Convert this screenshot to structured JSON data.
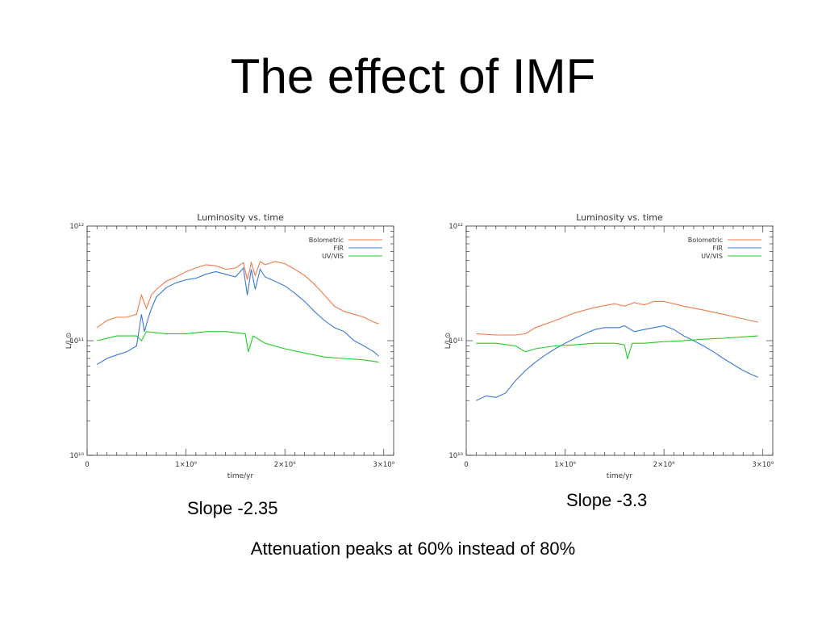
{
  "slide": {
    "title": "The effect of IMF",
    "caption_left": "Slope -2.35",
    "caption_right": "Slope -3.3",
    "footnote": "Attenuation peaks at 60% instead of 80%"
  },
  "colors": {
    "bolometric": "#f07a4a",
    "fir": "#3a78d8",
    "uvvis": "#22cc22"
  },
  "chart_data": [
    {
      "type": "line",
      "title": "Luminosity vs. time",
      "xlabel": "time/yr",
      "ylabel": "L/L⊙",
      "xlim": [
        0,
        3100000000.0
      ],
      "ylim": [
        10000000000.0,
        1000000000000.0
      ],
      "yscale": "log",
      "xticks": [
        0,
        1000000000.0,
        2000000000.0,
        3000000000.0
      ],
      "xtick_labels": [
        "0",
        "1×10⁹",
        "2×10⁹",
        "3×10⁹"
      ],
      "yticks": [
        10000000000.0,
        100000000000.0,
        1000000000000.0
      ],
      "ytick_labels": [
        "10¹⁰",
        "10¹¹",
        "10¹²"
      ],
      "legend_position": "top-right",
      "series": [
        {
          "name": "Bolometric",
          "color": "#f07a4a",
          "x": [
            100000000.0,
            200000000.0,
            300000000.0,
            400000000.0,
            500000000.0,
            550000000.0,
            600000000.0,
            650000000.0,
            700000000.0,
            800000000.0,
            900000000.0,
            1000000000.0,
            1100000000.0,
            1200000000.0,
            1300000000.0,
            1400000000.0,
            1500000000.0,
            1580000000.0,
            1620000000.0,
            1660000000.0,
            1700000000.0,
            1750000000.0,
            1800000000.0,
            1900000000.0,
            2000000000.0,
            2100000000.0,
            2200000000.0,
            2300000000.0,
            2400000000.0,
            2500000000.0,
            2600000000.0,
            2700000000.0,
            2800000000.0,
            2900000000.0,
            2950000000.0
          ],
          "y": [
            130000000000.0,
            150000000000.0,
            160000000000.0,
            160000000000.0,
            170000000000.0,
            250000000000.0,
            190000000000.0,
            250000000000.0,
            280000000000.0,
            330000000000.0,
            360000000000.0,
            400000000000.0,
            430000000000.0,
            460000000000.0,
            450000000000.0,
            420000000000.0,
            430000000000.0,
            480000000000.0,
            340000000000.0,
            480000000000.0,
            370000000000.0,
            490000000000.0,
            460000000000.0,
            490000000000.0,
            470000000000.0,
            420000000000.0,
            370000000000.0,
            310000000000.0,
            250000000000.0,
            200000000000.0,
            180000000000.0,
            170000000000.0,
            160000000000.0,
            145000000000.0,
            140000000000.0
          ]
        },
        {
          "name": "FIR",
          "color": "#3a78d8",
          "x": [
            100000000.0,
            200000000.0,
            300000000.0,
            400000000.0,
            500000000.0,
            550000000.0,
            580000000.0,
            620000000.0,
            650000000.0,
            700000000.0,
            800000000.0,
            900000000.0,
            1000000000.0,
            1100000000.0,
            1200000000.0,
            1300000000.0,
            1400000000.0,
            1500000000.0,
            1580000000.0,
            1620000000.0,
            1660000000.0,
            1700000000.0,
            1750000000.0,
            1800000000.0,
            1900000000.0,
            2000000000.0,
            2100000000.0,
            2200000000.0,
            2300000000.0,
            2400000000.0,
            2500000000.0,
            2600000000.0,
            2700000000.0,
            2800000000.0,
            2900000000.0,
            2950000000.0
          ],
          "y": [
            62000000000.0,
            70000000000.0,
            75000000000.0,
            80000000000.0,
            90000000000.0,
            170000000000.0,
            120000000000.0,
            160000000000.0,
            190000000000.0,
            240000000000.0,
            290000000000.0,
            320000000000.0,
            340000000000.0,
            350000000000.0,
            380000000000.0,
            400000000000.0,
            380000000000.0,
            360000000000.0,
            430000000000.0,
            250000000000.0,
            420000000000.0,
            280000000000.0,
            420000000000.0,
            360000000000.0,
            330000000000.0,
            300000000000.0,
            260000000000.0,
            220000000000.0,
            180000000000.0,
            150000000000.0,
            130000000000.0,
            120000000000.0,
            100000000000.0,
            90000000000.0,
            80000000000.0,
            73000000000.0
          ]
        },
        {
          "name": "UV/VIS",
          "color": "#22cc22",
          "x": [
            100000000.0,
            300000000.0,
            500000000.0,
            550000000.0,
            600000000.0,
            800000000.0,
            1000000000.0,
            1200000000.0,
            1400000000.0,
            1600000000.0,
            1630000000.0,
            1680000000.0,
            1800000000.0,
            2000000000.0,
            2200000000.0,
            2400000000.0,
            2600000000.0,
            2800000000.0,
            2950000000.0
          ],
          "y": [
            100000000000.0,
            110000000000.0,
            110000000000.0,
            100000000000.0,
            120000000000.0,
            115000000000.0,
            115000000000.0,
            120000000000.0,
            120000000000.0,
            115000000000.0,
            80000000000.0,
            110000000000.0,
            95000000000.0,
            85000000000.0,
            78000000000.0,
            72000000000.0,
            70000000000.0,
            68000000000.0,
            65000000000.0
          ]
        }
      ]
    },
    {
      "type": "line",
      "title": "Luminosity vs. time",
      "xlabel": "time/yr",
      "ylabel": "L/L⊙",
      "xlim": [
        0,
        3100000000.0
      ],
      "ylim": [
        10000000000.0,
        1000000000000.0
      ],
      "yscale": "log",
      "xticks": [
        0,
        1000000000.0,
        2000000000.0,
        3000000000.0
      ],
      "xtick_labels": [
        "0",
        "1×10⁹",
        "2×10⁹",
        "3×10⁹"
      ],
      "yticks": [
        10000000000.0,
        100000000000.0,
        1000000000000.0
      ],
      "ytick_labels": [
        "10¹⁰",
        "10¹¹",
        "10¹²"
      ],
      "legend_position": "top-right",
      "series": [
        {
          "name": "Bolometric",
          "color": "#f07a4a",
          "x": [
            100000000.0,
            300000000.0,
            500000000.0,
            600000000.0,
            700000000.0,
            900000000.0,
            1100000000.0,
            1300000000.0,
            1500000000.0,
            1600000000.0,
            1700000000.0,
            1800000000.0,
            1900000000.0,
            2000000000.0,
            2200000000.0,
            2400000000.0,
            2600000000.0,
            2800000000.0,
            2950000000.0
          ],
          "y": [
            115000000000.0,
            112000000000.0,
            112000000000.0,
            115000000000.0,
            130000000000.0,
            150000000000.0,
            175000000000.0,
            195000000000.0,
            210000000000.0,
            200000000000.0,
            215000000000.0,
            205000000000.0,
            220000000000.0,
            220000000000.0,
            200000000000.0,
            185000000000.0,
            170000000000.0,
            155000000000.0,
            145000000000.0
          ]
        },
        {
          "name": "FIR",
          "color": "#3a78d8",
          "x": [
            100000000.0,
            200000000.0,
            300000000.0,
            400000000.0,
            500000000.0,
            600000000.0,
            700000000.0,
            800000000.0,
            900000000.0,
            1000000000.0,
            1100000000.0,
            1200000000.0,
            1300000000.0,
            1400000000.0,
            1500000000.0,
            1550000000.0,
            1600000000.0,
            1700000000.0,
            1800000000.0,
            1900000000.0,
            2000000000.0,
            2100000000.0,
            2200000000.0,
            2300000000.0,
            2400000000.0,
            2500000000.0,
            2600000000.0,
            2700000000.0,
            2800000000.0,
            2900000000.0,
            2950000000.0
          ],
          "y": [
            30000000000.0,
            33000000000.0,
            32000000000.0,
            35000000000.0,
            45000000000.0,
            55000000000.0,
            65000000000.0,
            75000000000.0,
            85000000000.0,
            95000000000.0,
            105000000000.0,
            115000000000.0,
            125000000000.0,
            130000000000.0,
            130000000000.0,
            130000000000.0,
            135000000000.0,
            120000000000.0,
            125000000000.0,
            130000000000.0,
            135000000000.0,
            125000000000.0,
            110000000000.0,
            100000000000.0,
            90000000000.0,
            80000000000.0,
            70000000000.0,
            62000000000.0,
            55000000000.0,
            50000000000.0,
            48000000000.0
          ]
        },
        {
          "name": "UV/VIS",
          "color": "#22cc22",
          "x": [
            100000000.0,
            300000000.0,
            500000000.0,
            600000000.0,
            700000000.0,
            900000000.0,
            1100000000.0,
            1300000000.0,
            1500000000.0,
            1600000000.0,
            1630000000.0,
            1680000000.0,
            1800000000.0,
            2000000000.0,
            2200000000.0,
            2400000000.0,
            2600000000.0,
            2800000000.0,
            2950000000.0
          ],
          "y": [
            95000000000.0,
            95000000000.0,
            90000000000.0,
            80000000000.0,
            85000000000.0,
            90000000000.0,
            92000000000.0,
            95000000000.0,
            95000000000.0,
            92000000000.0,
            70000000000.0,
            95000000000.0,
            95000000000.0,
            98000000000.0,
            100000000000.0,
            103000000000.0,
            105000000000.0,
            108000000000.0,
            110000000000.0
          ]
        }
      ]
    }
  ]
}
